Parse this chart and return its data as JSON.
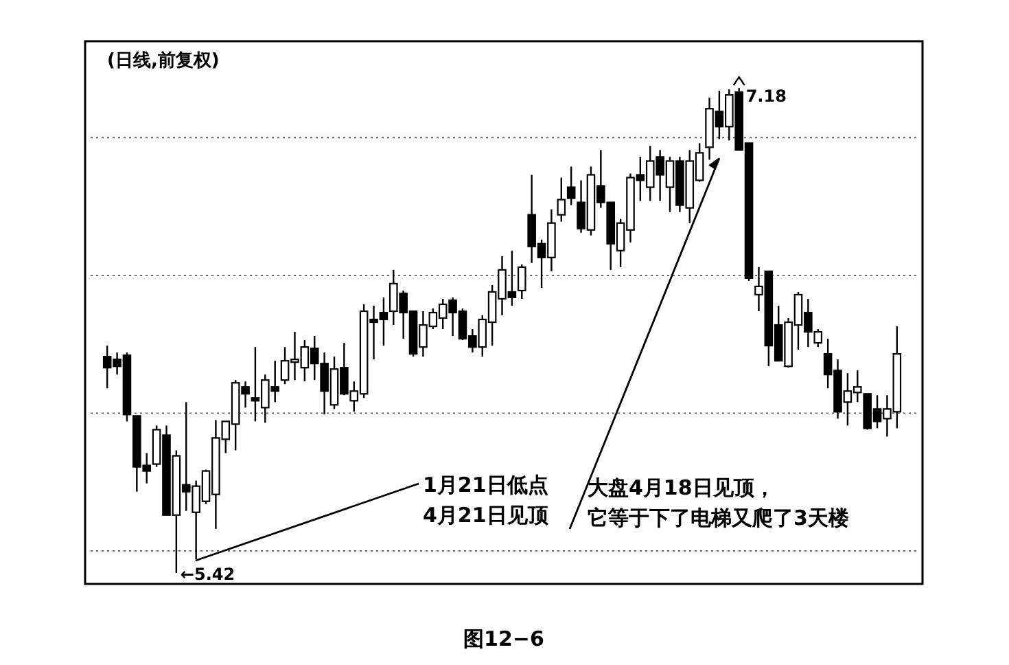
{
  "chart_data": {
    "type": "candlestick",
    "title": "(日线,前复权)",
    "categories": [
      null,
      null,
      null,
      null,
      null,
      null,
      null,
      null,
      null,
      null,
      null,
      null,
      null,
      null,
      null,
      null,
      null,
      null,
      null,
      null,
      null,
      null,
      null,
      null,
      null,
      null,
      null,
      null,
      null,
      null,
      null,
      null,
      null,
      null,
      null,
      null,
      null,
      null,
      null,
      null,
      null,
      null,
      null,
      null,
      null,
      null,
      null,
      null,
      null,
      null,
      null,
      null,
      null,
      null,
      null,
      null,
      null,
      null,
      null,
      null,
      null,
      null,
      null,
      null,
      null,
      null,
      null,
      null,
      null,
      null,
      null,
      null,
      null,
      null,
      null,
      null,
      null,
      null,
      null,
      null,
      null
    ],
    "ohlc": [
      [
        6.205,
        6.245,
        6.09,
        6.165
      ],
      [
        6.195,
        6.22,
        6.14,
        6.17
      ],
      [
        6.21,
        6.22,
        5.97,
        5.995
      ],
      [
        5.99,
        5.99,
        5.715,
        5.805
      ],
      [
        5.81,
        5.855,
        5.745,
        5.79
      ],
      [
        5.815,
        5.955,
        5.805,
        5.94
      ],
      [
        5.92,
        5.955,
        5.63,
        5.63
      ],
      [
        5.63,
        5.865,
        5.42,
        5.845
      ],
      [
        5.74,
        6.04,
        5.645,
        5.715
      ],
      [
        5.64,
        5.755,
        5.47,
        5.735
      ],
      [
        5.68,
        5.795,
        5.67,
        5.79
      ],
      [
        5.705,
        5.975,
        5.58,
        5.91
      ],
      [
        5.905,
        5.97,
        5.855,
        5.97
      ],
      [
        5.96,
        6.12,
        5.865,
        6.11
      ],
      [
        6.095,
        6.115,
        6.02,
        6.07
      ],
      [
        6.055,
        6.24,
        5.97,
        6.045
      ],
      [
        6.02,
        6.14,
        5.965,
        6.12
      ],
      [
        6.095,
        6.19,
        6.04,
        6.08
      ],
      [
        6.12,
        6.24,
        6.105,
        6.19
      ],
      [
        6.185,
        6.295,
        6.12,
        6.195
      ],
      [
        6.165,
        6.265,
        6.115,
        6.24
      ],
      [
        6.235,
        6.28,
        6.12,
        6.18
      ],
      [
        6.18,
        6.22,
        5.995,
        6.08
      ],
      [
        6.03,
        6.205,
        6.015,
        6.16
      ],
      [
        6.165,
        6.255,
        6.065,
        6.07
      ],
      [
        6.045,
        6.115,
        6.005,
        6.08
      ],
      [
        6.07,
        6.395,
        6.055,
        6.37
      ],
      [
        6.34,
        6.39,
        6.195,
        6.33
      ],
      [
        6.365,
        6.42,
        6.245,
        6.34
      ],
      [
        6.37,
        6.52,
        6.32,
        6.47
      ],
      [
        6.435,
        6.445,
        6.27,
        6.365
      ],
      [
        6.37,
        6.37,
        6.205,
        6.215
      ],
      [
        6.24,
        6.37,
        6.205,
        6.32
      ],
      [
        6.315,
        6.38,
        6.305,
        6.365
      ],
      [
        6.345,
        6.415,
        6.305,
        6.395
      ],
      [
        6.41,
        6.42,
        6.28,
        6.365
      ],
      [
        6.37,
        6.38,
        6.265,
        6.27
      ],
      [
        6.28,
        6.305,
        6.22,
        6.24
      ],
      [
        6.24,
        6.355,
        6.205,
        6.34
      ],
      [
        6.33,
        6.465,
        6.245,
        6.44
      ],
      [
        6.415,
        6.57,
        6.355,
        6.52
      ],
      [
        6.44,
        6.59,
        6.39,
        6.42
      ],
      [
        6.445,
        6.54,
        6.415,
        6.53
      ],
      [
        6.72,
        6.865,
        6.545,
        6.605
      ],
      [
        6.615,
        6.63,
        6.455,
        6.565
      ],
      [
        6.565,
        6.74,
        6.515,
        6.69
      ],
      [
        6.72,
        6.855,
        6.695,
        6.775
      ],
      [
        6.82,
        6.895,
        6.755,
        6.78
      ],
      [
        6.765,
        6.845,
        6.655,
        6.67
      ],
      [
        6.665,
        6.895,
        6.645,
        6.865
      ],
      [
        6.825,
        6.955,
        6.745,
        6.765
      ],
      [
        6.765,
        6.765,
        6.52,
        6.615
      ],
      [
        6.59,
        6.705,
        6.53,
        6.69
      ],
      [
        6.665,
        6.87,
        6.62,
        6.855
      ],
      [
        6.865,
        6.93,
        6.77,
        6.845
      ],
      [
        6.82,
        6.97,
        6.77,
        6.915
      ],
      [
        6.93,
        6.955,
        6.77,
        6.865
      ],
      [
        6.82,
        6.93,
        6.73,
        6.915
      ],
      [
        6.915,
        6.93,
        6.73,
        6.755
      ],
      [
        6.745,
        6.955,
        6.69,
        6.915
      ],
      [
        6.845,
        6.98,
        6.84,
        6.945
      ],
      [
        6.965,
        7.145,
        6.92,
        7.105
      ],
      [
        7.095,
        7.17,
        6.995,
        7.04
      ],
      [
        7.04,
        7.175,
        6.99,
        7.155
      ],
      [
        7.165,
        7.18,
        6.955,
        6.955
      ],
      [
        6.98,
        6.98,
        6.48,
        6.49
      ],
      [
        6.43,
        6.53,
        6.37,
        6.46
      ],
      [
        6.515,
        6.515,
        6.17,
        6.245
      ],
      [
        6.32,
        6.39,
        6.19,
        6.19
      ],
      [
        6.17,
        6.345,
        6.165,
        6.33
      ],
      [
        6.32,
        6.44,
        6.23,
        6.43
      ],
      [
        6.365,
        6.415,
        6.24,
        6.295
      ],
      [
        6.255,
        6.305,
        6.24,
        6.295
      ],
      [
        6.215,
        6.27,
        6.09,
        6.14
      ],
      [
        6.155,
        6.195,
        5.98,
        6.005
      ],
      [
        6.04,
        6.145,
        5.955,
        6.08
      ],
      [
        6.075,
        6.155,
        6.04,
        6.095
      ],
      [
        6.07,
        6.07,
        5.94,
        5.945
      ],
      [
        6.015,
        6.065,
        5.945,
        5.97
      ],
      [
        5.98,
        6.065,
        5.915,
        6.015
      ],
      [
        6.005,
        6.315,
        5.945,
        6.215
      ]
    ],
    "ylim": [
      5.38,
      7.35
    ],
    "yticks": [
      {
        "value": 7.0,
        "label": null
      },
      {
        "value": 6.5,
        "label": null
      },
      {
        "value": 6.0,
        "label": null
      },
      {
        "value": 5.5,
        "label": null
      }
    ],
    "grid": "y",
    "annotations": [
      "7.18",
      "←5.42",
      "1月21日低点",
      "4月21日见顶",
      "大盘4月18日见顶，",
      "它等于下了电梯又爬了3天楼",
      "图12−6"
    ]
  }
}
